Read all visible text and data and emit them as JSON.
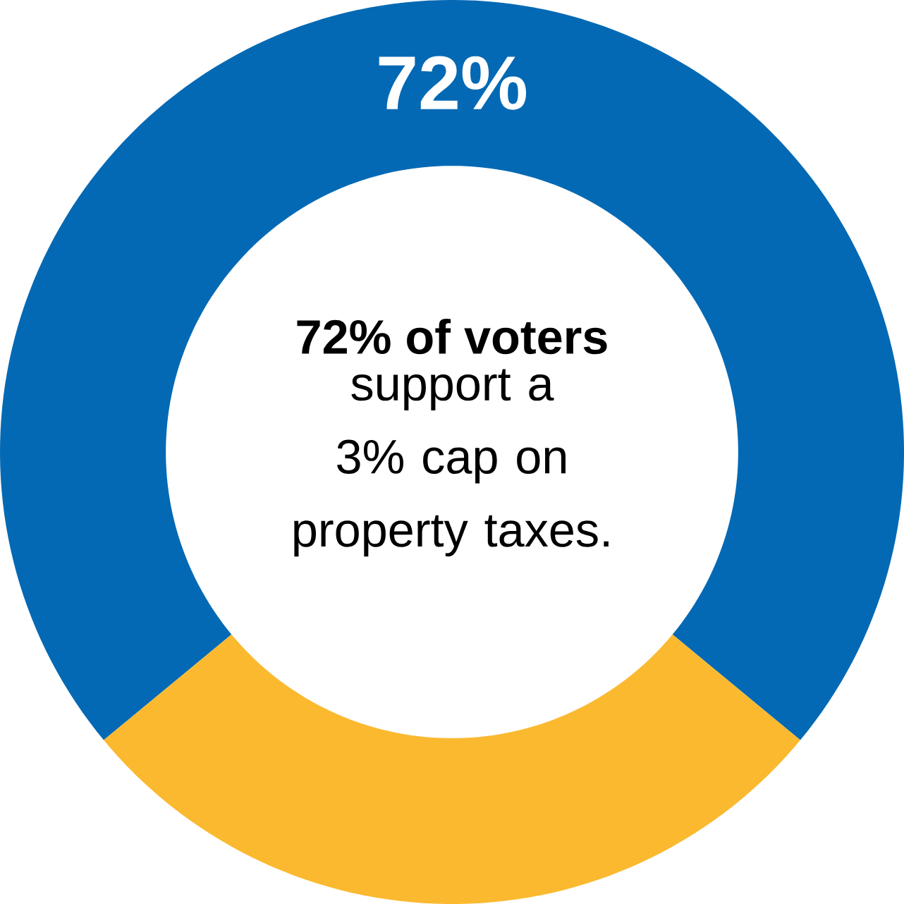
{
  "chart_data": {
    "type": "donut",
    "categories": [
      null,
      null
    ],
    "values": [
      72,
      28
    ],
    "colors": [
      "#0469b4",
      "#fbb930"
    ],
    "value_labels": [
      "72%",
      null
    ],
    "annotations": [
      "72% of voters",
      "support a 3% cap on property taxes."
    ]
  }
}
